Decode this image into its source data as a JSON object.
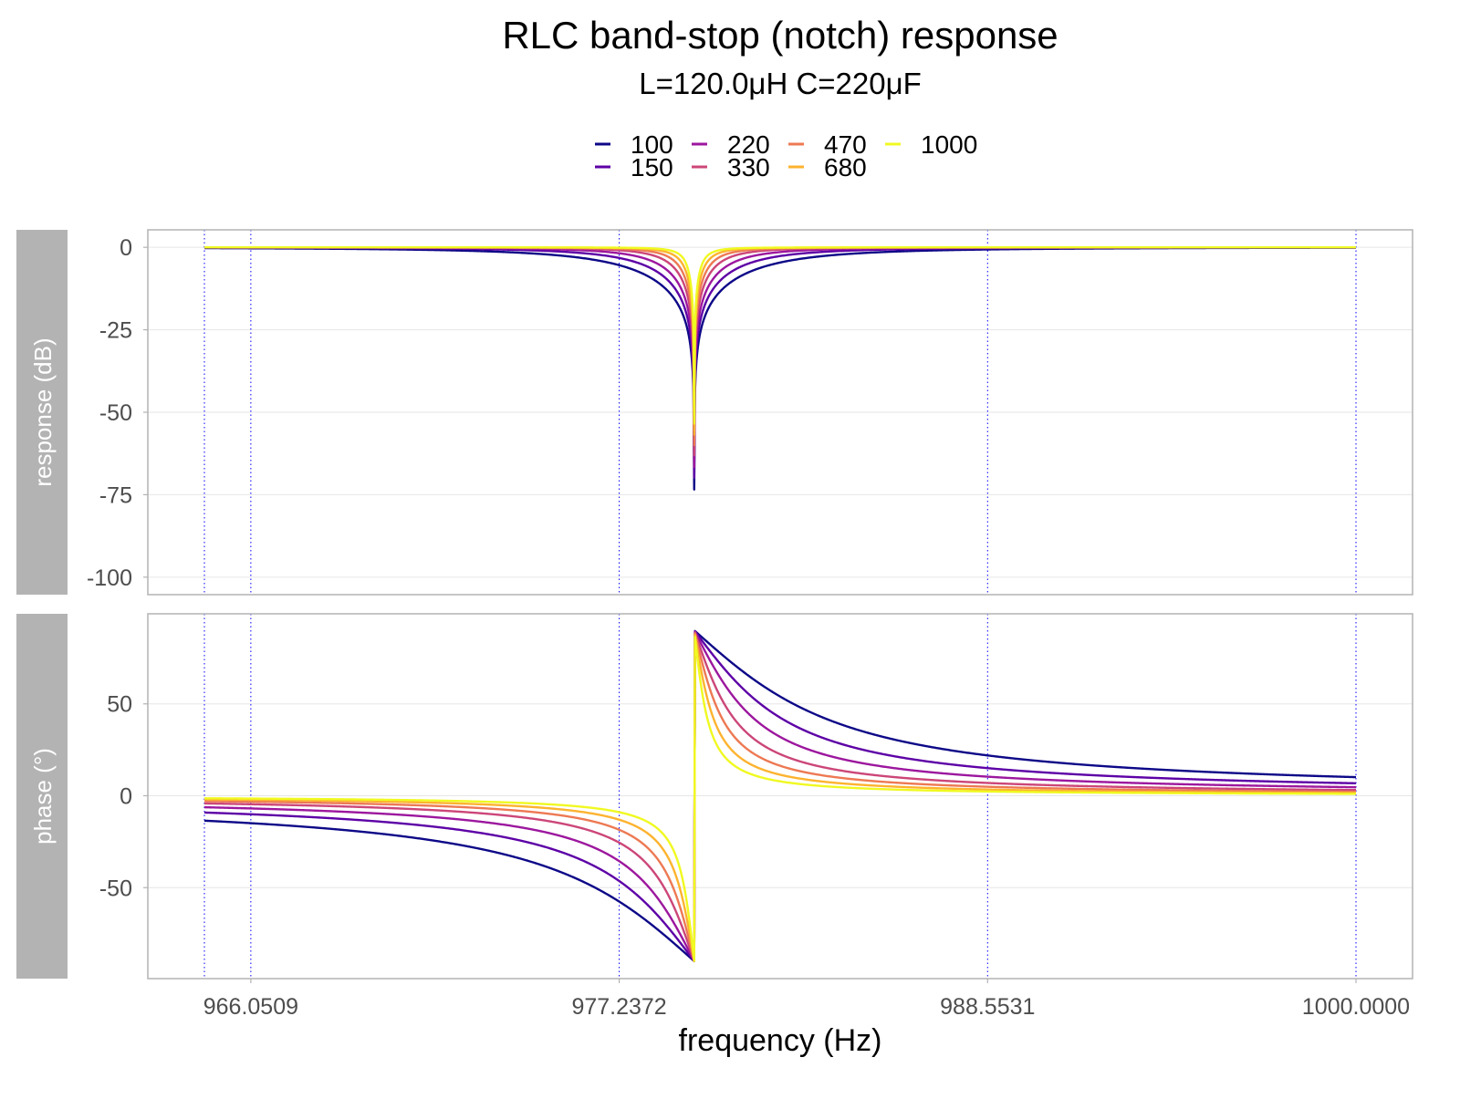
{
  "chart_data": {
    "type": "line",
    "title": "RLC band-stop (notch) response",
    "subtitle": "L=120.0μH  C=220μF",
    "component_values": {
      "L_uH": 120.0,
      "C_uF": 220
    },
    "xlabel": "frequency (Hz)",
    "x_scale": "log",
    "xlim": [
      964.65,
      1000.0
    ],
    "x_ticks": [
      "966.0509",
      "977.2372",
      "988.5531",
      "1000.0000"
    ],
    "x_tick_values": [
      966.0509,
      977.2372,
      988.5531,
      1000.0
    ],
    "reference_lines_x": [
      964.65,
      966.0509,
      977.2372,
      988.5531,
      1000.0
    ],
    "legend_position": "top",
    "grid": true,
    "series": [
      {
        "name": "100",
        "color": "#0D0887"
      },
      {
        "name": "150",
        "color": "#5D01A6"
      },
      {
        "name": "220",
        "color": "#9C179E"
      },
      {
        "name": "330",
        "color": "#CC4678"
      },
      {
        "name": "470",
        "color": "#ED7953"
      },
      {
        "name": "680",
        "color": "#FDB32F"
      },
      {
        "name": "1000",
        "color": "#F0F921"
      }
    ],
    "panels": [
      {
        "strip": "response (dB)",
        "ylim": [
          -105.3,
          5.3
        ],
        "y_ticks": [
          0,
          -25,
          -50,
          -75,
          -100
        ],
        "y_tick_labels": [
          "0",
          "-25",
          "-50",
          "-75",
          "-100"
        ],
        "quantity": "magnitude_db"
      },
      {
        "strip": "phase (°)",
        "ylim": [
          -99.5,
          99.0
        ],
        "y_ticks": [
          50,
          0,
          -50
        ],
        "y_tick_labels": [
          "50",
          "0",
          "-50"
        ],
        "quantity": "phase_deg"
      }
    ]
  }
}
